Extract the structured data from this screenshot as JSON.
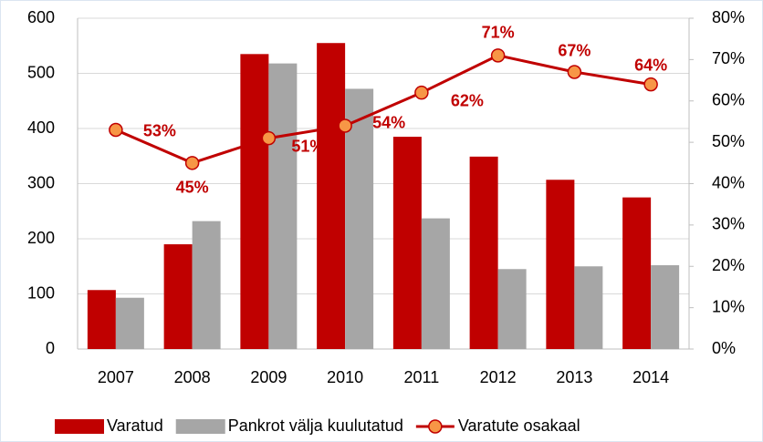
{
  "chart_data": {
    "type": "bar",
    "categories": [
      "2007",
      "2008",
      "2009",
      "2010",
      "2011",
      "2012",
      "2013",
      "2014"
    ],
    "series": [
      {
        "name": "Varatud",
        "color": "#c00000",
        "type": "bar",
        "values": [
          107,
          190,
          535,
          555,
          385,
          349,
          307,
          275
        ]
      },
      {
        "name": "Pankrot välja kuulutatud",
        "color": "#a6a6a6",
        "type": "bar",
        "values": [
          93,
          232,
          518,
          472,
          237,
          145,
          150,
          152
        ]
      },
      {
        "name": "Varatute osakaal",
        "color": "#c00000",
        "marker_color": "#f79646",
        "type": "line",
        "axis": "y2",
        "values": [
          53,
          45,
          51,
          54,
          62,
          71,
          67,
          64
        ],
        "value_labels": [
          "53%",
          "45%",
          "51%",
          "54%",
          "62%",
          "71%",
          "67%",
          "64%"
        ]
      }
    ],
    "ylim": [
      0,
      600
    ],
    "yticks": [
      0,
      100,
      200,
      300,
      400,
      500,
      600
    ],
    "y2lim": [
      0,
      80
    ],
    "y2ticks": [
      {
        "value": 0,
        "label": "0%"
      },
      {
        "value": 10,
        "label": "10%"
      },
      {
        "value": 20,
        "label": "20%"
      },
      {
        "value": 30,
        "label": "30%"
      },
      {
        "value": 40,
        "label": "40%"
      },
      {
        "value": 50,
        "label": "50%"
      },
      {
        "value": 60,
        "label": "60%"
      },
      {
        "value": 70,
        "label": "70%"
      },
      {
        "value": 80,
        "label": "80%"
      }
    ],
    "grid": true,
    "legend": "bottom"
  }
}
